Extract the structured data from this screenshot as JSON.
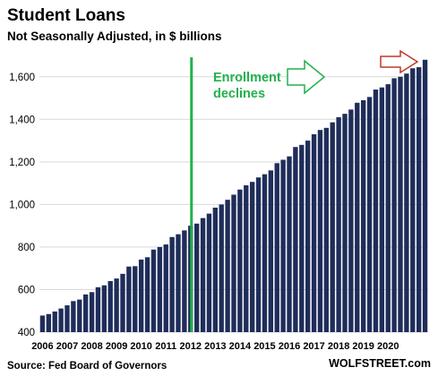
{
  "chart_data": {
    "type": "bar",
    "title": "Student Loans",
    "subtitle": "Not Seasonally Adjusted, in $ billions",
    "xlabel": "",
    "ylabel": "",
    "ylim": [
      400,
      1700
    ],
    "yticks": [
      "400",
      "600",
      "800",
      "1,000",
      "1,200",
      "1,400",
      "1,600"
    ],
    "year_labels": [
      "2006",
      "2007",
      "2008",
      "2009",
      "2010",
      "2011",
      "2012",
      "2013",
      "2014",
      "2015",
      "2016",
      "2017",
      "2018",
      "2019",
      "2020"
    ],
    "bar_color": "#1f2d5a",
    "grid": true,
    "values": [
      478,
      485,
      497,
      511,
      526,
      546,
      553,
      577,
      588,
      611,
      620,
      640,
      652,
      674,
      708,
      710,
      741,
      752,
      788,
      800,
      812,
      847,
      860,
      878,
      900,
      910,
      936,
      957,
      985,
      1000,
      1022,
      1046,
      1070,
      1090,
      1106,
      1127,
      1142,
      1160,
      1194,
      1210,
      1226,
      1270,
      1280,
      1300,
      1330,
      1350,
      1360,
      1386,
      1410,
      1426,
      1446,
      1478,
      1490,
      1505,
      1540,
      1550,
      1565,
      1593,
      1600,
      1615,
      1640,
      1645,
      1680
    ],
    "annotations": {
      "vertical_line_color": "#22b14c",
      "enrollment_text_line1": "Enrollment",
      "enrollment_text_line2": "declines",
      "text_color": "#22b14c",
      "green_arrow_color": "#22b14c",
      "red_arrow_color": "#c0392b"
    }
  },
  "footer": {
    "source": "Source: Fed Board of Governors",
    "brand": "WOLFSTREET.com"
  }
}
